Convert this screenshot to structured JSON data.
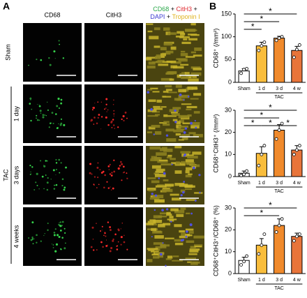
{
  "panel_a": {
    "panel_label": "A",
    "columns": [
      {
        "label": "CD68",
        "color": "#2aa84a"
      },
      {
        "label": "CitH3",
        "color": "#e0282e"
      }
    ],
    "merge_header": [
      [
        {
          "text": "CD68",
          "color": "#2aa84a"
        },
        {
          "text": " + ",
          "color": "#000000"
        },
        {
          "text": "CitH3",
          "color": "#e0282e"
        },
        {
          "text": " +",
          "color": "#000000"
        }
      ],
      [
        {
          "text": "DAPI",
          "color": "#3a3ad0"
        },
        {
          "text": " + ",
          "color": "#000000"
        },
        {
          "text": "Troponin I",
          "color": "#e0b21a"
        }
      ]
    ],
    "rows": [
      "Sham",
      "1 day",
      "3 days",
      "4 weeks"
    ],
    "group_label": "TAC"
  },
  "panel_b": {
    "panel_label": "B"
  },
  "chart_data": [
    {
      "type": "bar",
      "ylabel": "CD68⁺ (/mm²)",
      "categories": [
        "Sham",
        "1 d",
        "3 d",
        "4 w"
      ],
      "values": [
        25,
        80,
        97,
        70
      ],
      "errors": [
        5,
        8,
        4,
        9
      ],
      "points": [
        [
          20,
          28,
          30
        ],
        [
          70,
          80,
          88
        ],
        [
          92,
          97,
          100
        ],
        [
          55,
          72,
          82
        ]
      ],
      "colors": [
        "#ffffff",
        "#f9bd3c",
        "#f08a2c",
        "#e8743a"
      ],
      "ylim": [
        0,
        150
      ],
      "yticks": [
        0,
        50,
        100,
        150
      ],
      "group": {
        "label": "TAC",
        "from": "1 d",
        "to": "4 w"
      },
      "significance": [
        {
          "from": "Sham",
          "to": "1 d",
          "label": "*"
        },
        {
          "from": "Sham",
          "to": "3 d",
          "label": "*"
        },
        {
          "from": "Sham",
          "to": "4 w",
          "label": "*"
        }
      ]
    },
    {
      "type": "bar",
      "ylabel": "CD68⁺CitH3⁺ (/mm²)",
      "categories": [
        "Sham",
        "1 d",
        "3 d",
        "4 w"
      ],
      "values": [
        1.5,
        10.5,
        21,
        12
      ],
      "errors": [
        1,
        3,
        2.5,
        2
      ],
      "points": [
        [
          0.5,
          1,
          2.5
        ],
        [
          5,
          10,
          14
        ],
        [
          17,
          21,
          24
        ],
        [
          10,
          12,
          14
        ]
      ],
      "colors": [
        "#ffffff",
        "#f9bd3c",
        "#f08a2c",
        "#e8743a"
      ],
      "ylim": [
        0,
        30
      ],
      "yticks": [
        0,
        10,
        20,
        30
      ],
      "group": {
        "label": "TAC",
        "from": "1 d",
        "to": "4 w"
      },
      "significance": [
        {
          "from": "Sham",
          "to": "1 d",
          "label": "*"
        },
        {
          "from": "1 d",
          "to": "3 d",
          "label": "*"
        },
        {
          "from": "3 d",
          "to": "4 w",
          "label": "*"
        },
        {
          "from": "Sham",
          "to": "3 d",
          "label": "*"
        },
        {
          "from": "Sham",
          "to": "4 w",
          "label": "*"
        }
      ]
    },
    {
      "type": "bar",
      "ylabel": "CD68⁺CitH3⁺/CD68⁺ (%)",
      "categories": [
        "Sham",
        "1 d",
        "3 d",
        "4 w"
      ],
      "values": [
        6,
        13,
        22,
        17
      ],
      "errors": [
        1.5,
        3,
        3,
        1.5
      ],
      "points": [
        [
          4,
          5.5,
          8
        ],
        [
          9,
          13,
          18
        ],
        [
          19,
          22,
          25
        ],
        [
          15,
          17,
          18
        ]
      ],
      "colors": [
        "#ffffff",
        "#f9bd3c",
        "#f08a2c",
        "#e8743a"
      ],
      "ylim": [
        0,
        30
      ],
      "yticks": [
        0,
        10,
        20,
        30
      ],
      "group": {
        "label": "TAC",
        "from": "1 d",
        "to": "4 w"
      },
      "significance": [
        {
          "from": "Sham",
          "to": "3 d",
          "label": "*"
        },
        {
          "from": "Sham",
          "to": "4 w",
          "label": "*"
        }
      ]
    }
  ]
}
